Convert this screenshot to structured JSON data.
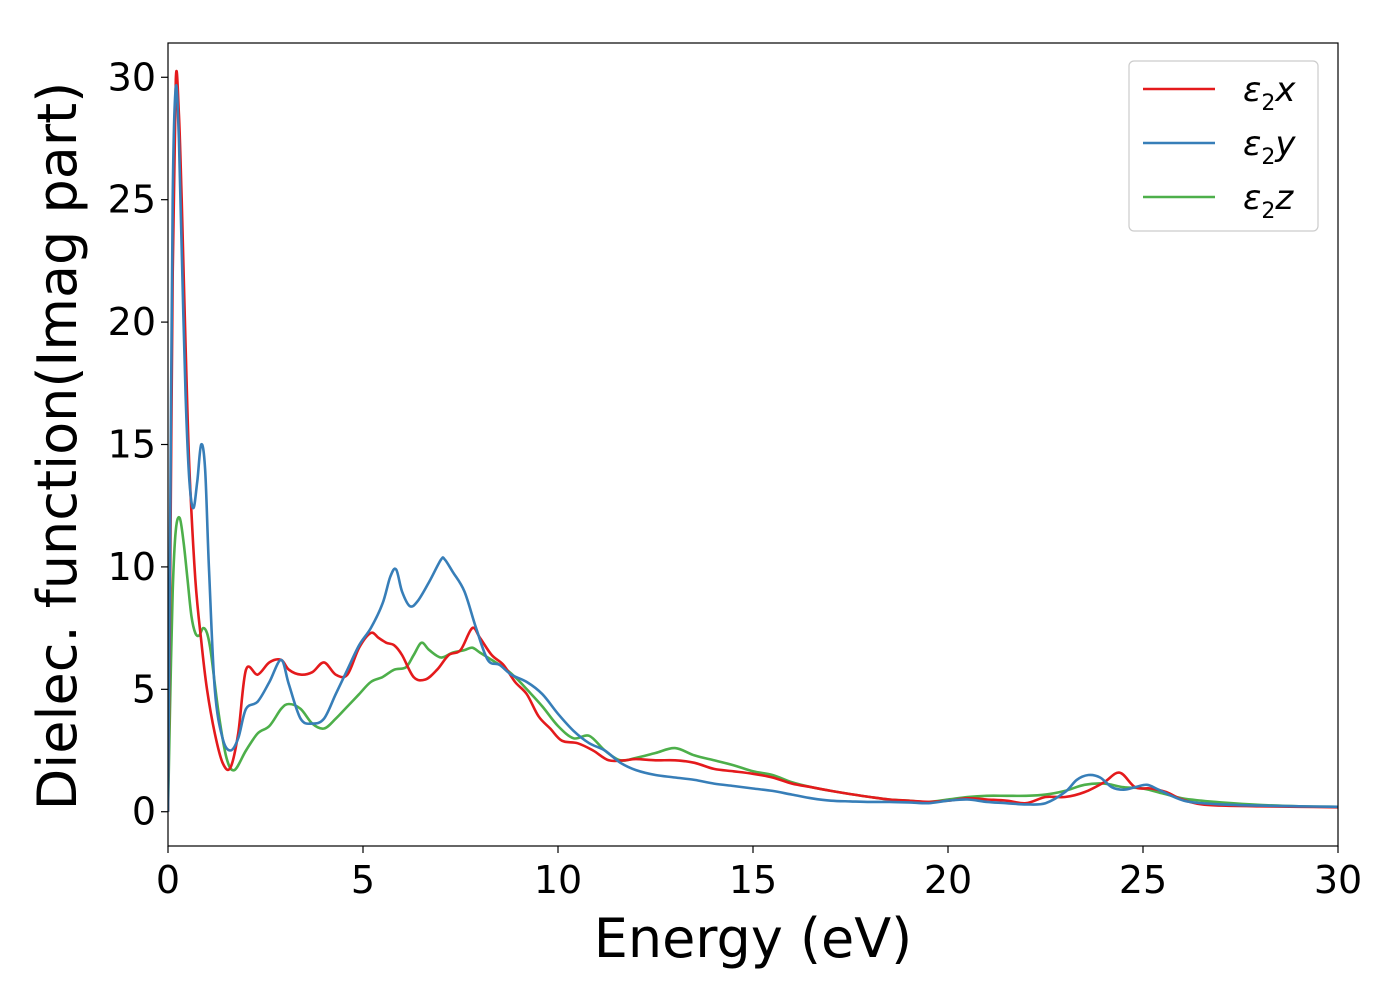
{
  "chart_data": {
    "type": "line",
    "title": "",
    "xlabel": "Energy (eV)",
    "ylabel": "Dielec. function(Imag part)",
    "xlim": [
      0,
      30
    ],
    "ylim": [
      -1.4,
      31.4
    ],
    "xticks": [
      0,
      5,
      10,
      15,
      20,
      25,
      30
    ],
    "yticks": [
      0,
      5,
      10,
      15,
      20,
      25,
      30
    ],
    "grid": false,
    "legend_position": "top-right",
    "series": [
      {
        "name": "ε₂x",
        "legend_main": "ε",
        "legend_sub": "2",
        "legend_var": "x",
        "color": "#e41a1c",
        "x": [
          0,
          0.05,
          0.12,
          0.2,
          0.28,
          0.35,
          0.45,
          0.55,
          0.7,
          0.85,
          1.0,
          1.2,
          1.4,
          1.6,
          1.8,
          2.0,
          2.3,
          2.6,
          2.9,
          3.1,
          3.4,
          3.7,
          4.0,
          4.3,
          4.6,
          4.9,
          5.2,
          5.4,
          5.6,
          5.8,
          6.0,
          6.3,
          6.6,
          6.9,
          7.2,
          7.5,
          7.8,
          8.0,
          8.3,
          8.6,
          8.9,
          9.2,
          9.5,
          9.8,
          10.1,
          10.5,
          10.9,
          11.3,
          11.7,
          12.0,
          12.5,
          13.0,
          13.5,
          14.0,
          14.5,
          15.0,
          15.5,
          16.0,
          16.5,
          17.0,
          17.5,
          18.0,
          18.5,
          19.0,
          19.5,
          20.0,
          20.5,
          21.0,
          21.5,
          22.0,
          22.5,
          23.0,
          23.5,
          24.0,
          24.4,
          24.8,
          25.2,
          25.6,
          26.0,
          26.5,
          27.0,
          28.0,
          29.0,
          30.0
        ],
        "y": [
          0,
          8,
          22,
          29.9,
          28.5,
          25,
          19,
          14,
          9.5,
          7,
          5,
          3.2,
          2,
          1.8,
          3.2,
          5.8,
          5.6,
          6.1,
          6.2,
          5.8,
          5.6,
          5.7,
          6.1,
          5.6,
          5.6,
          6.7,
          7.3,
          7.1,
          6.9,
          6.8,
          6.4,
          5.5,
          5.4,
          5.8,
          6.4,
          6.6,
          7.5,
          7.1,
          6.4,
          6.0,
          5.3,
          4.8,
          3.9,
          3.4,
          2.9,
          2.8,
          2.5,
          2.1,
          2.1,
          2.15,
          2.1,
          2.1,
          2.0,
          1.75,
          1.65,
          1.55,
          1.4,
          1.15,
          1.0,
          0.85,
          0.72,
          0.6,
          0.5,
          0.45,
          0.4,
          0.45,
          0.55,
          0.5,
          0.45,
          0.35,
          0.6,
          0.6,
          0.8,
          1.2,
          1.6,
          1.0,
          0.95,
          0.8,
          0.5,
          0.3,
          0.25,
          0.22,
          0.2,
          0.18
        ]
      },
      {
        "name": "ε₂y",
        "legend_main": "ε",
        "legend_sub": "2",
        "legend_var": "y",
        "color": "#377eb8",
        "x": [
          0,
          0.05,
          0.12,
          0.2,
          0.28,
          0.35,
          0.45,
          0.55,
          0.65,
          0.75,
          0.85,
          0.95,
          1.05,
          1.2,
          1.4,
          1.6,
          1.8,
          2.0,
          2.3,
          2.6,
          2.9,
          3.1,
          3.4,
          3.7,
          4.0,
          4.3,
          4.6,
          4.9,
          5.2,
          5.5,
          5.7,
          5.85,
          6.0,
          6.2,
          6.4,
          6.7,
          7.0,
          7.1,
          7.3,
          7.6,
          7.9,
          8.2,
          8.5,
          8.8,
          9.2,
          9.6,
          10.0,
          10.4,
          10.8,
          11.2,
          11.6,
          12.0,
          12.5,
          13.0,
          13.5,
          14.0,
          14.5,
          15.0,
          15.5,
          16.0,
          16.5,
          17.0,
          17.5,
          18.0,
          18.5,
          19.0,
          19.5,
          20.0,
          20.5,
          21.0,
          21.5,
          22.0,
          22.5,
          23.0,
          23.3,
          23.6,
          23.9,
          24.2,
          24.5,
          24.8,
          25.1,
          25.4,
          25.8,
          26.2,
          27.0,
          28.0,
          29.0,
          30.0
        ],
        "y": [
          0,
          10,
          25,
          29.6,
          27.5,
          23,
          17,
          13.5,
          12.4,
          13.5,
          15,
          14,
          10,
          5,
          3,
          2.5,
          3.0,
          4.2,
          4.5,
          5.3,
          6.2,
          5.2,
          3.8,
          3.6,
          3.8,
          4.8,
          5.8,
          6.8,
          7.5,
          8.5,
          9.6,
          9.9,
          9.0,
          8.4,
          8.6,
          9.4,
          10.3,
          10.3,
          9.8,
          9.0,
          7.5,
          6.2,
          6.0,
          5.6,
          5.3,
          4.8,
          4.0,
          3.3,
          2.8,
          2.5,
          2.0,
          1.7,
          1.5,
          1.4,
          1.3,
          1.15,
          1.05,
          0.95,
          0.85,
          0.7,
          0.55,
          0.45,
          0.42,
          0.4,
          0.4,
          0.38,
          0.35,
          0.45,
          0.5,
          0.4,
          0.35,
          0.3,
          0.35,
          0.8,
          1.3,
          1.5,
          1.4,
          1.0,
          0.9,
          1.0,
          1.1,
          0.9,
          0.6,
          0.4,
          0.3,
          0.25,
          0.22,
          0.2
        ]
      },
      {
        "name": "ε₂z",
        "legend_main": "ε",
        "legend_sub": "2",
        "legend_var": "z",
        "color": "#4daf4a",
        "x": [
          0,
          0.05,
          0.12,
          0.2,
          0.3,
          0.4,
          0.5,
          0.6,
          0.7,
          0.8,
          0.9,
          1.0,
          1.1,
          1.3,
          1.5,
          1.7,
          2.0,
          2.3,
          2.6,
          2.9,
          3.1,
          3.4,
          3.7,
          4.0,
          4.3,
          4.6,
          4.9,
          5.2,
          5.5,
          5.8,
          6.1,
          6.3,
          6.5,
          6.7,
          7.0,
          7.3,
          7.6,
          7.8,
          8.0,
          8.3,
          8.6,
          8.9,
          9.2,
          9.6,
          10.0,
          10.4,
          10.8,
          11.2,
          11.6,
          12.0,
          12.5,
          13.0,
          13.5,
          14.0,
          14.5,
          15.0,
          15.5,
          16.0,
          16.5,
          17.0,
          17.5,
          18.0,
          18.5,
          19.0,
          19.5,
          20.0,
          20.5,
          21.0,
          21.5,
          22.0,
          22.5,
          23.0,
          23.5,
          24.0,
          24.5,
          25.0,
          25.5,
          26.0,
          26.5,
          27.0,
          28.0,
          29.0,
          30.0
        ],
        "y": [
          0,
          4,
          9,
          11.5,
          12.0,
          11.0,
          9.5,
          8,
          7.3,
          7.2,
          7.5,
          7.3,
          6.5,
          4,
          2.2,
          1.7,
          2.5,
          3.2,
          3.5,
          4.2,
          4.4,
          4.2,
          3.6,
          3.4,
          3.8,
          4.3,
          4.8,
          5.3,
          5.5,
          5.8,
          5.9,
          6.4,
          6.9,
          6.6,
          6.3,
          6.5,
          6.6,
          6.7,
          6.5,
          6.2,
          5.9,
          5.5,
          5.0,
          4.3,
          3.5,
          3.0,
          3.1,
          2.5,
          2.1,
          2.2,
          2.4,
          2.6,
          2.3,
          2.1,
          1.9,
          1.65,
          1.5,
          1.2,
          1.0,
          0.85,
          0.72,
          0.6,
          0.5,
          0.45,
          0.4,
          0.5,
          0.6,
          0.65,
          0.65,
          0.65,
          0.7,
          0.85,
          1.1,
          1.15,
          1.0,
          0.95,
          0.75,
          0.55,
          0.45,
          0.38,
          0.28,
          0.22,
          0.2
        ]
      }
    ]
  }
}
